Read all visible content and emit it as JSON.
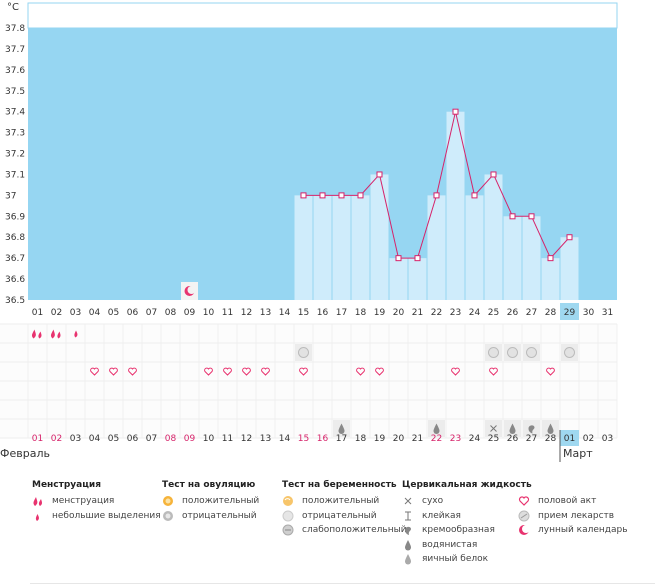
{
  "chart_data": {
    "type": "bar+line",
    "title": "",
    "ylabel": "°C",
    "ylim": [
      36.5,
      37.8
    ],
    "yticks": [
      "36.5",
      "36.6",
      "36.7",
      "36.8",
      "36.9",
      "37",
      "37.1",
      "37.2",
      "37.3",
      "37.4",
      "37.5",
      "37.6",
      "37.7",
      "37.8"
    ],
    "days": [
      "01",
      "02",
      "03",
      "04",
      "05",
      "06",
      "07",
      "08",
      "09",
      "10",
      "11",
      "12",
      "13",
      "14",
      "15",
      "16",
      "17",
      "18",
      "19",
      "20",
      "21",
      "22",
      "23",
      "24",
      "25",
      "26",
      "27",
      "28",
      "29",
      "30",
      "31"
    ],
    "temperatures": [
      null,
      null,
      null,
      null,
      null,
      null,
      null,
      null,
      null,
      null,
      null,
      null,
      null,
      null,
      37.0,
      37.0,
      37.0,
      37.0,
      37.1,
      36.7,
      36.7,
      37.0,
      37.4,
      37.0,
      37.1,
      36.9,
      36.9,
      36.7,
      36.8,
      null,
      null
    ],
    "current_day_index": 28,
    "cycle_days": [
      "01",
      "02",
      "03",
      "04",
      "05",
      "06",
      "07",
      "08",
      "09",
      "10",
      "11",
      "12",
      "13",
      "14",
      "15",
      "16",
      "17",
      "18",
      "19",
      "20",
      "21",
      "22",
      "23",
      "24",
      "25",
      "26",
      "27",
      "28",
      "01",
      "02",
      "03"
    ],
    "highlight_cycle_days": [
      0,
      1,
      7,
      8,
      14,
      15,
      21,
      22
    ],
    "month_start": "Февраль",
    "month_next": "Март",
    "markers": {
      "menstruation": [
        0,
        1
      ],
      "light_spotting": [
        2
      ],
      "lunar": [
        8
      ],
      "pregnancy_test": [
        14,
        24,
        25,
        26,
        28
      ],
      "intercourse": [
        3,
        4,
        5,
        9,
        10,
        11,
        12,
        14,
        17,
        18,
        22,
        24,
        27
      ],
      "cm_dry": [
        24
      ],
      "cm_creamy": [
        26
      ],
      "cm_watery": [
        16,
        21,
        25,
        27
      ]
    },
    "colors": {
      "bg_fill": "#96d6f2",
      "bar_fill": "#cfecfb",
      "bar_stroke": "#8ecde9",
      "line": "#d6236a",
      "current": "#9fd8f0",
      "pink": "#e8336f"
    }
  },
  "legend": {
    "menstruation": {
      "title": "Менструация",
      "items": [
        "менструация",
        "небольшие выделения"
      ]
    },
    "ovulation": {
      "title": "Тест на овуляцию",
      "items": [
        "положительный",
        "отрицательный"
      ]
    },
    "pregnancy": {
      "title": "Тест на беременность",
      "items": [
        "положительный",
        "отрицательный",
        "слабоположительный"
      ]
    },
    "cervical": {
      "title": "Цервикальная жидкость",
      "items": [
        "сухо",
        "клейкая",
        "кремообразная",
        "водянистая",
        "яичный белок"
      ]
    },
    "other": {
      "items": [
        "половой акт",
        "прием лекарств",
        "лунный календарь"
      ]
    }
  }
}
